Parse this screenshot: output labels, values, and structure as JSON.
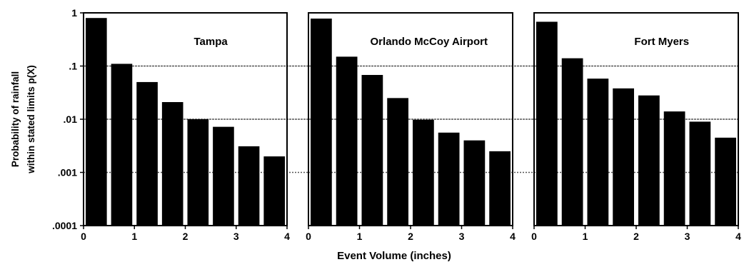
{
  "chart_data": {
    "type": "bar",
    "scale": "log",
    "ylim": [
      0.0001,
      1
    ],
    "xlim": [
      0,
      4
    ],
    "y_ticks": [
      "1",
      ".1",
      ".01",
      ".001",
      ".0001"
    ],
    "x_ticks": [
      "0",
      "1",
      "2",
      "3",
      "4"
    ],
    "xlabel": "Event Volume (inches)",
    "ylabel_lines": [
      "Probability of rainfall",
      "within stated limits p(X)"
    ],
    "bar_edges_inches": [
      0,
      0.5,
      1,
      1.5,
      2,
      2.5,
      3,
      3.5,
      4
    ],
    "reference_lines": [
      0.1,
      0.01,
      0.001
    ],
    "panels": [
      {
        "title": "Tampa",
        "values": [
          0.8,
          0.11,
          0.05,
          0.021,
          0.01,
          0.0072,
          0.0031,
          0.002
        ]
      },
      {
        "title": "Orlando McCoy Airport",
        "values": [
          0.78,
          0.15,
          0.068,
          0.025,
          0.0098,
          0.0056,
          0.004,
          0.0025
        ]
      },
      {
        "title": "Fort Myers",
        "values": [
          0.68,
          0.14,
          0.058,
          0.038,
          0.028,
          0.014,
          0.009,
          0.0045
        ]
      }
    ]
  }
}
